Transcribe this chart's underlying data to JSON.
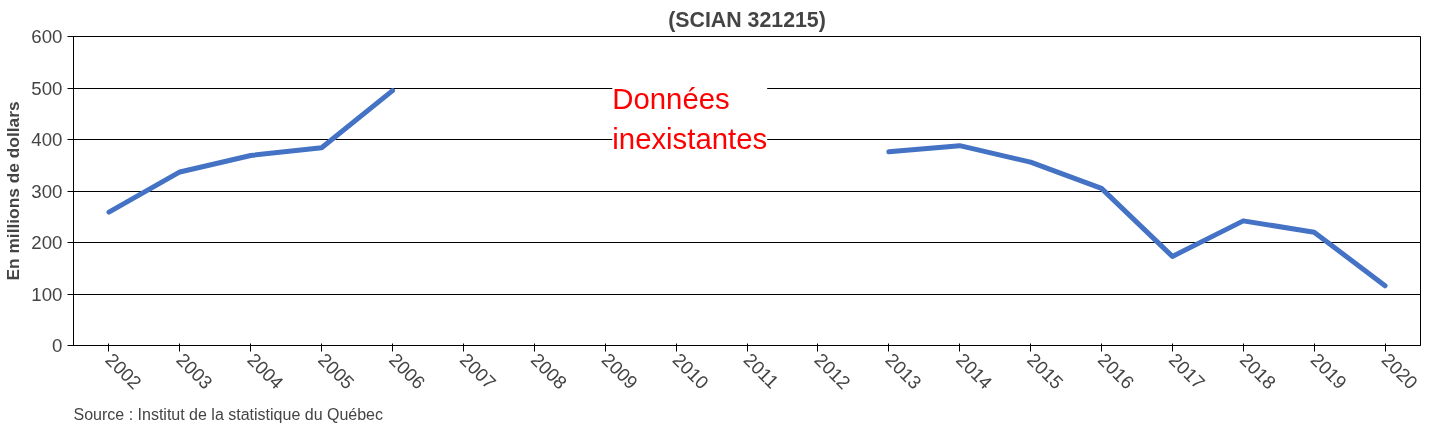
{
  "chart_data": {
    "type": "line",
    "title": "(SCIAN 321215)",
    "ylabel": "En millions de dollars",
    "categories": [
      "2002",
      "2003",
      "2004",
      "2005",
      "2006",
      "2007",
      "2008",
      "2009",
      "2010",
      "2011",
      "2012",
      "2013",
      "2014",
      "2015",
      "2016",
      "2017",
      "2018",
      "2019",
      "2020"
    ],
    "series": [
      {
        "color": "#4472c4",
        "values": [
          259,
          337,
          369,
          384,
          495,
          null,
          null,
          null,
          null,
          null,
          null,
          376,
          388,
          356,
          305,
          173,
          242,
          220,
          116
        ]
      }
    ],
    "ylim": [
      0,
      600
    ],
    "yticks": [
      0,
      100,
      200,
      300,
      400,
      500,
      600
    ],
    "grid": "y",
    "annotations": [
      "Données inexistantes",
      "Source : Institut de la statistique du Québec"
    ]
  }
}
